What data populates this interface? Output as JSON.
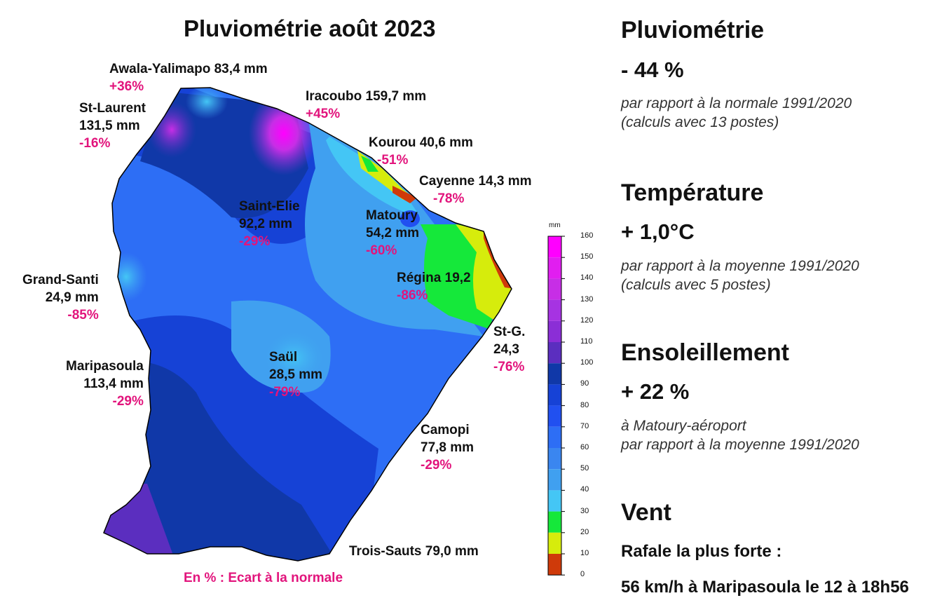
{
  "map": {
    "title": "Pluviométrie août 2023",
    "legend_note": "En % : Ecart à la normale",
    "scale": {
      "unit": "mm",
      "ticks": [
        "160",
        "150",
        "140",
        "130",
        "120",
        "110",
        "100",
        "90",
        "80",
        "70",
        "60",
        "50",
        "40",
        "30",
        "20",
        "10",
        "0"
      ],
      "colors": [
        "#ff00ff",
        "#e11ef0",
        "#c72ee6",
        "#a633e2",
        "#8b2ed6",
        "#5b2ebf",
        "#1038a8",
        "#1642d6",
        "#2150f0",
        "#2d6ef5",
        "#3a86f0",
        "#40a0f0",
        "#44c6f5",
        "#15e83a",
        "#d6ec0c",
        "#cf3a0a"
      ],
      "color_names": [
        "magenta",
        "violet",
        "violet",
        "purple",
        "purple",
        "indigo",
        "navy",
        "blue",
        "blue",
        "blue",
        "steel-blue",
        "light-blue",
        "cyan",
        "green",
        "yellow",
        "orange-red"
      ]
    },
    "stations": [
      {
        "name": "Awala-Yalimapo 83,4 mm",
        "pct": "+36%"
      },
      {
        "name": "Iracoubo 159,7 mm",
        "pct": "+45%"
      },
      {
        "name": "St-Laurent",
        "value": "131,5 mm",
        "pct": "-16%"
      },
      {
        "name": "Kourou 40,6 mm",
        "pct": "-51%"
      },
      {
        "name": "Cayenne 14,3 mm",
        "pct": "-78%"
      },
      {
        "name": "Saint-Elie",
        "value": "92,2 mm",
        "pct": "-29%"
      },
      {
        "name": "Matoury",
        "value": "54,2 mm",
        "pct": "-60%"
      },
      {
        "name": "Régina 19,2",
        "pct": "-86%"
      },
      {
        "name": "Grand-Santi",
        "value": "24,9 mm",
        "pct": "-85%"
      },
      {
        "name": "St-G.",
        "value": "24,3",
        "pct": "-76%"
      },
      {
        "name": "Saül",
        "value": "28,5 mm",
        "pct": "-79%"
      },
      {
        "name": "Maripasoula",
        "value": "113,4 mm",
        "pct": "-29%"
      },
      {
        "name": "Camopi",
        "value": "77,8 mm",
        "pct": "-29%"
      },
      {
        "name": "Trois-Sauts 79,0 mm"
      }
    ]
  },
  "summary": {
    "pluvio": {
      "title": "Pluviométrie",
      "value": "- 44 %",
      "note1": "par rapport à la normale 1991/2020",
      "note2": "(calculs avec 13 postes)"
    },
    "temp": {
      "title": "Température",
      "value": "+ 1,0°C",
      "note1": "par rapport à la moyenne 1991/2020",
      "note2": "(calculs avec 5 postes)"
    },
    "sun": {
      "title": "Ensoleillement",
      "value": "+ 22 %",
      "note1": "à Matoury-aéroport",
      "note2": "par rapport à la moyenne 1991/2020"
    },
    "wind": {
      "title": "Vent",
      "gust_label": "Rafale la plus forte :",
      "gust_value": "56 km/h à Maripasoula le 12 à 18h56"
    }
  }
}
